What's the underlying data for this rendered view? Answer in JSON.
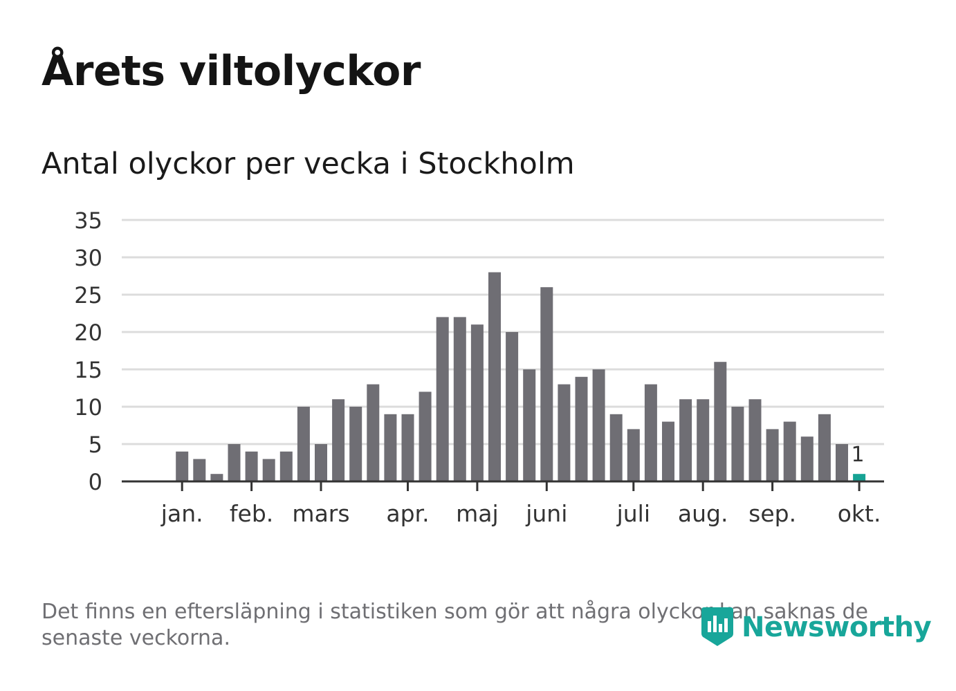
{
  "title": "Årets viltolyckor",
  "subtitle": "Antal olyckor per vecka i Stockholm",
  "footnote": "Det finns en eftersläpning i statistiken som gör att några olyckor kan saknas de senaste veckorna.",
  "brand": {
    "name": "Newsworthy",
    "icon": "newsworthy-logo-icon",
    "color": "#18a69a"
  },
  "colors": {
    "bar": "#6f6e74",
    "highlight": "#16a394",
    "grid": "#dcdcdc",
    "axis": "#333333"
  },
  "chart_data": {
    "type": "bar",
    "title": "Antal olyckor per vecka i Stockholm",
    "xlabel": "",
    "ylabel": "",
    "ylim": [
      0,
      35
    ],
    "yticks": [
      0,
      5,
      10,
      15,
      20,
      25,
      30,
      35
    ],
    "grid": true,
    "weeks": [
      1,
      2,
      3,
      4,
      5,
      6,
      7,
      8,
      9,
      10,
      11,
      12,
      13,
      14,
      15,
      16,
      17,
      18,
      19,
      20,
      21,
      22,
      23,
      24,
      25,
      26,
      27,
      28,
      29,
      30,
      31,
      32,
      33,
      34,
      35,
      36,
      37,
      38,
      39,
      40,
      41
    ],
    "values": [
      0,
      4,
      3,
      1,
      5,
      4,
      3,
      4,
      10,
      5,
      11,
      10,
      13,
      9,
      9,
      12,
      22,
      22,
      21,
      28,
      20,
      15,
      26,
      13,
      14,
      15,
      9,
      7,
      13,
      8,
      11,
      11,
      16,
      10,
      11,
      7,
      8,
      6,
      9,
      5,
      1
    ],
    "highlight_index": 40,
    "highlight_label": "1",
    "month_ticks": [
      {
        "label": "jan.",
        "week": 2
      },
      {
        "label": "feb.",
        "week": 6
      },
      {
        "label": "mars",
        "week": 10
      },
      {
        "label": "apr.",
        "week": 15
      },
      {
        "label": "maj",
        "week": 19
      },
      {
        "label": "juni",
        "week": 23
      },
      {
        "label": "juli",
        "week": 28
      },
      {
        "label": "aug.",
        "week": 32
      },
      {
        "label": "sep.",
        "week": 36
      },
      {
        "label": "okt.",
        "week": 41
      }
    ]
  }
}
